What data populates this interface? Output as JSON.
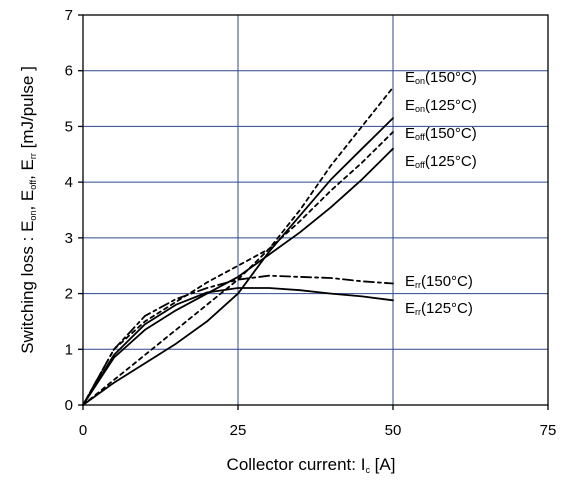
{
  "chart_data": {
    "type": "line",
    "xlabel": "Collector current: Ic [A]",
    "ylabel": "Switching loss  : Eon, Eoff, Err  [mJ/pulse ]",
    "xlim": [
      0,
      75
    ],
    "ylim": [
      0,
      7
    ],
    "xticks": [
      0,
      25,
      50,
      75
    ],
    "yticks": [
      0,
      1,
      2,
      3,
      4,
      5,
      6,
      7
    ],
    "grid": true,
    "legend": "inline labels at right of curves",
    "series": [
      {
        "name": "Eon(150°C)",
        "style": "dotted",
        "x": [
          0,
          5,
          10,
          15,
          20,
          25,
          30,
          35,
          40,
          45,
          50
        ],
        "y": [
          0,
          0.45,
          0.9,
          1.35,
          1.8,
          2.25,
          2.8,
          3.5,
          4.3,
          5.0,
          5.7
        ]
      },
      {
        "name": "Eon(125°C)",
        "style": "solid",
        "x": [
          0,
          5,
          10,
          15,
          20,
          25,
          30,
          35,
          40,
          45,
          50
        ],
        "y": [
          0,
          0.4,
          0.75,
          1.1,
          1.5,
          2.0,
          2.75,
          3.4,
          4.05,
          4.6,
          5.15
        ]
      },
      {
        "name": "Eoff(150°C)",
        "style": "dotted",
        "x": [
          0,
          5,
          10,
          15,
          20,
          25,
          30,
          35,
          40,
          45,
          50
        ],
        "y": [
          0,
          1.0,
          1.5,
          1.85,
          2.2,
          2.5,
          2.8,
          3.3,
          3.85,
          4.35,
          4.9
        ]
      },
      {
        "name": "Eoff(125°C)",
        "style": "solid",
        "x": [
          0,
          5,
          10,
          15,
          20,
          25,
          30,
          35,
          40,
          45,
          50
        ],
        "y": [
          0,
          0.85,
          1.35,
          1.7,
          2.0,
          2.3,
          2.7,
          3.1,
          3.55,
          4.05,
          4.6
        ]
      },
      {
        "name": "Err(150°C)",
        "style": "dash-dot",
        "x": [
          0,
          5,
          10,
          15,
          20,
          25,
          30,
          35,
          40,
          45,
          50
        ],
        "y": [
          0,
          1.0,
          1.6,
          1.9,
          2.1,
          2.25,
          2.32,
          2.3,
          2.28,
          2.22,
          2.18
        ]
      },
      {
        "name": "Err(125°C)",
        "style": "solid",
        "x": [
          0,
          5,
          10,
          15,
          20,
          25,
          30,
          35,
          40,
          45,
          50
        ],
        "y": [
          0,
          0.9,
          1.45,
          1.8,
          2.02,
          2.1,
          2.1,
          2.06,
          2.0,
          1.95,
          1.88
        ]
      }
    ]
  },
  "labels": {
    "xlabel_main": "Collector current: I",
    "xlabel_sub": "c",
    "xlabel_unit": " [A]",
    "ylabel_main": "Switching loss  : E",
    "ylabel_sub1": "on",
    "ylabel_sep1": ", E",
    "ylabel_sub2": "off",
    "ylabel_sep2": ", E",
    "ylabel_sub3": "rr",
    "ylabel_unit": "  [mJ/pulse ]",
    "series_labels": [
      {
        "main": "E",
        "sub": "on",
        "rest": "(150°C)"
      },
      {
        "main": "E",
        "sub": "on",
        "rest": "(125°C)"
      },
      {
        "main": "E",
        "sub": "off",
        "rest": "(150°C)"
      },
      {
        "main": "E",
        "sub": "off",
        "rest": "(125°C)"
      },
      {
        "main": "E",
        "sub": "rr",
        "rest": "(150°C)"
      },
      {
        "main": "E",
        "sub": "rr",
        "rest": "(125°C)"
      }
    ]
  }
}
